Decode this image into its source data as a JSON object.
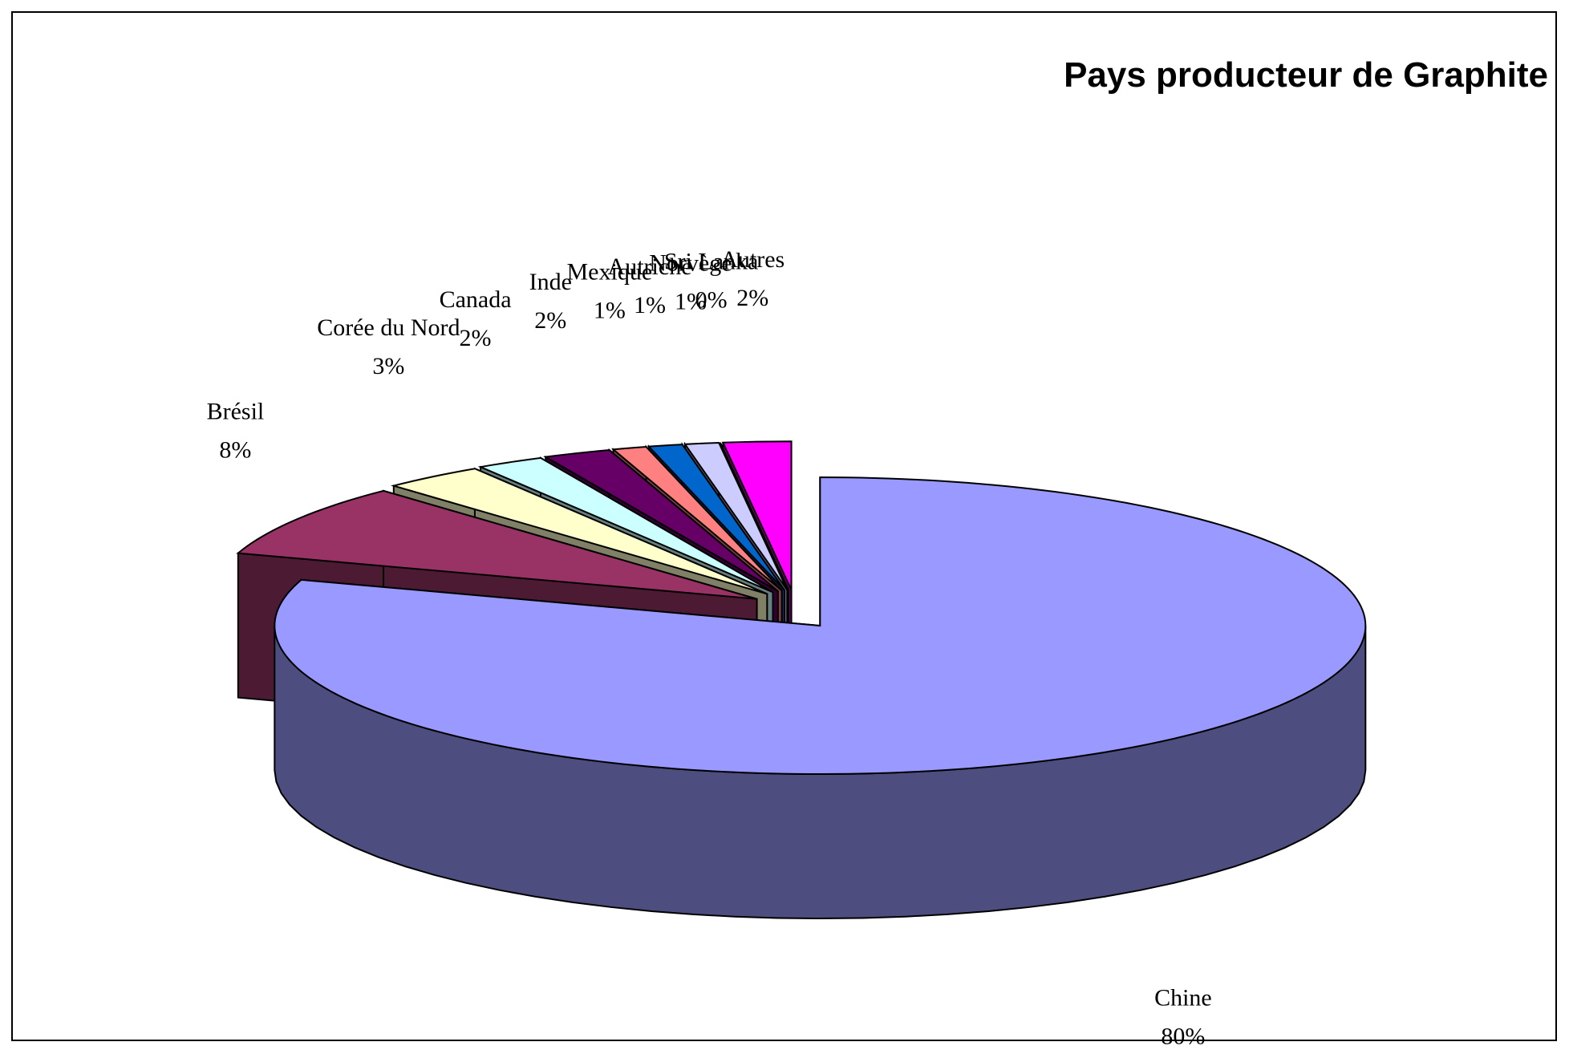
{
  "chart_data": {
    "type": "pie",
    "title": "Pays producteur de Graphite",
    "categories": [
      "Chine",
      "Brésil",
      "Corée du Nord",
      "Canada",
      "Inde",
      "Mexique",
      "Autriche",
      "Norvège",
      "Sri Lanka",
      "Autres"
    ],
    "values": [
      80,
      8,
      3,
      2,
      2,
      1,
      1,
      1,
      0,
      2
    ],
    "value_labels": [
      "80%",
      "8%",
      "3%",
      "2%",
      "2%",
      "1%",
      "1%",
      "1%",
      "0%",
      "2%"
    ],
    "colors": [
      "#9999ff",
      "#993366",
      "#ffffcc",
      "#ccffff",
      "#660066",
      "#ff8080",
      "#0066cc",
      "#ccccff",
      "#000080",
      "#ff00ff"
    ]
  }
}
